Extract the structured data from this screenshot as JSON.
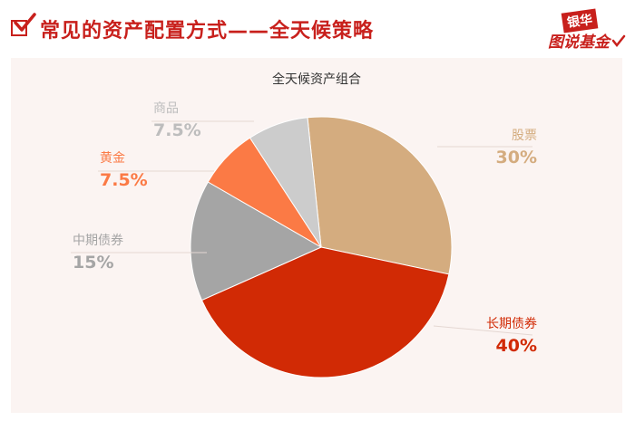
{
  "header": {
    "title": "常见的资产配置方式——全天候策略"
  },
  "logo": {
    "top_text": "银华",
    "bottom_text": "图说基金"
  },
  "colors": {
    "accent": "#c8201c"
  },
  "chart_data": {
    "type": "pie",
    "title": "全天候资产组合",
    "slices": [
      {
        "label": "股票",
        "value": 30,
        "display": "30%",
        "color": "#d4ac7f"
      },
      {
        "label": "长期债券",
        "value": 40,
        "display": "40%",
        "color": "#d12a05"
      },
      {
        "label": "中期债券",
        "value": 15,
        "display": "15%",
        "color": "#a5a5a5"
      },
      {
        "label": "黄金",
        "value": 7.5,
        "display": "7.5%",
        "color": "#fb7a45"
      },
      {
        "label": "商品",
        "value": 7.5,
        "display": "7.5%",
        "color": "#cccccc"
      }
    ],
    "legend": "none"
  }
}
